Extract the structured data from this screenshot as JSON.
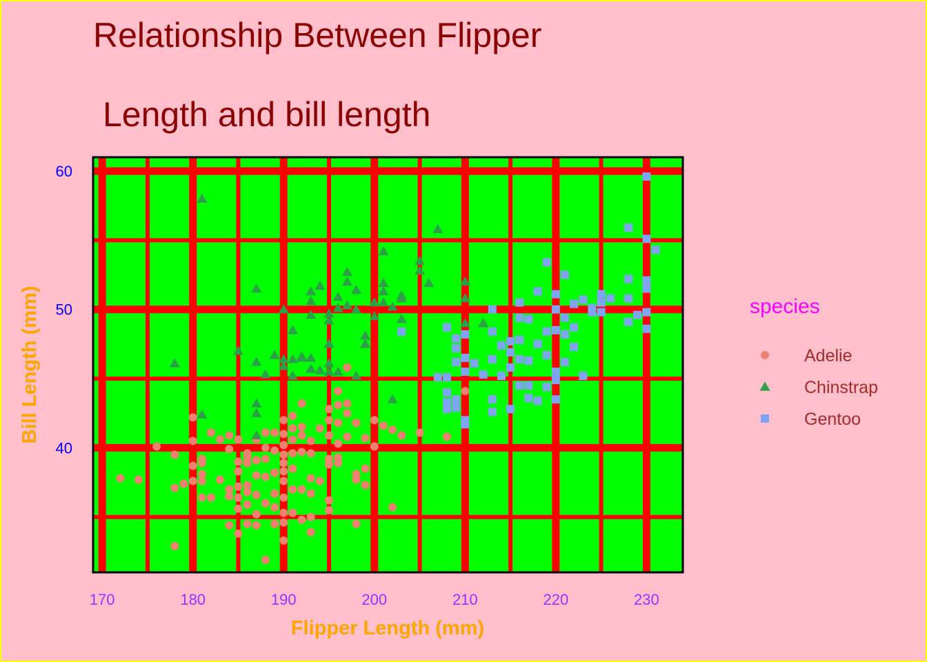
{
  "chart_data": {
    "type": "scatter",
    "title_lines": [
      "Relationship Between Flipper",
      "Length and bill length"
    ],
    "xlabel": "Flipper Length (mm)",
    "ylabel": "Bill Length (mm)",
    "xlim": [
      169,
      234
    ],
    "ylim": [
      31,
      61
    ],
    "x_ticks": [
      170,
      180,
      190,
      200,
      210,
      220,
      230
    ],
    "y_ticks": [
      40,
      50,
      60
    ],
    "grid": true,
    "legend": {
      "title": "species",
      "position": "right"
    },
    "colors": {
      "background": "#ffc0cb",
      "plot_background": "#00ff00",
      "grid": "#ff0000",
      "border": "#ffff00"
    },
    "series": [
      {
        "name": "Adelie",
        "marker": "circle",
        "color": "#f08070",
        "points": [
          [
            172,
            37.8
          ],
          [
            174,
            37.7
          ],
          [
            176,
            40.1
          ],
          [
            178,
            39.5
          ],
          [
            178,
            37.1
          ],
          [
            178,
            32.9
          ],
          [
            179,
            37.4
          ],
          [
            180,
            42.2
          ],
          [
            180,
            40.5
          ],
          [
            180,
            38.7
          ],
          [
            180,
            37.6
          ],
          [
            181,
            39.2
          ],
          [
            181,
            38.9
          ],
          [
            181,
            38.1
          ],
          [
            181,
            37.6
          ],
          [
            181,
            36.4
          ],
          [
            182,
            41.1
          ],
          [
            182,
            36.4
          ],
          [
            183,
            40.6
          ],
          [
            183,
            37.7
          ],
          [
            184,
            40.9
          ],
          [
            184,
            39.9
          ],
          [
            184,
            37.0
          ],
          [
            184,
            36.5
          ],
          [
            184,
            34.4
          ],
          [
            185,
            40.6
          ],
          [
            185,
            39.0
          ],
          [
            185,
            38.3
          ],
          [
            185,
            37.2
          ],
          [
            185,
            36.4
          ],
          [
            185,
            35.6
          ],
          [
            185,
            33.8
          ],
          [
            186,
            39.6
          ],
          [
            186,
            39.3
          ],
          [
            186,
            38.9
          ],
          [
            186,
            37.3
          ],
          [
            186,
            36.8
          ],
          [
            186,
            35.9
          ],
          [
            186,
            34.5
          ],
          [
            187,
            40.6
          ],
          [
            187,
            39.1
          ],
          [
            187,
            38.0
          ],
          [
            187,
            36.6
          ],
          [
            187,
            35.2
          ],
          [
            187,
            34.4
          ],
          [
            188,
            41.1
          ],
          [
            188,
            40.0
          ],
          [
            188,
            39.2
          ],
          [
            188,
            37.9
          ],
          [
            188,
            36.0
          ],
          [
            188,
            31.9
          ],
          [
            189,
            41.1
          ],
          [
            189,
            39.8
          ],
          [
            189,
            38.2
          ],
          [
            189,
            36.7
          ],
          [
            189,
            35.7
          ],
          [
            189,
            34.5
          ],
          [
            190,
            42.0
          ],
          [
            190,
            41.0
          ],
          [
            190,
            40.2
          ],
          [
            190,
            39.5
          ],
          [
            190,
            38.9
          ],
          [
            190,
            38.3
          ],
          [
            190,
            37.6
          ],
          [
            190,
            36.4
          ],
          [
            190,
            35.3
          ],
          [
            190,
            34.6
          ],
          [
            190,
            33.3
          ],
          [
            191,
            42.3
          ],
          [
            191,
            41.4
          ],
          [
            191,
            40.6
          ],
          [
            191,
            39.6
          ],
          [
            191,
            38.5
          ],
          [
            191,
            37.0
          ],
          [
            191,
            35.3
          ],
          [
            192,
            43.2
          ],
          [
            192,
            41.5
          ],
          [
            192,
            40.9
          ],
          [
            192,
            39.7
          ],
          [
            192,
            37.0
          ],
          [
            192,
            34.8
          ],
          [
            193,
            40.5
          ],
          [
            193,
            39.6
          ],
          [
            193,
            37.8
          ],
          [
            193,
            36.7
          ],
          [
            193,
            35.0
          ],
          [
            193,
            33.9
          ],
          [
            194,
            41.4
          ],
          [
            194,
            37.6
          ],
          [
            195,
            42.8
          ],
          [
            195,
            42.0
          ],
          [
            195,
            40.9
          ],
          [
            195,
            39.2
          ],
          [
            195,
            38.8
          ],
          [
            195,
            36.2
          ],
          [
            195,
            35.5
          ],
          [
            196,
            43.1
          ],
          [
            196,
            41.8
          ],
          [
            196,
            40.3
          ],
          [
            196,
            39.3
          ],
          [
            196,
            38.9
          ],
          [
            196,
            44.1
          ],
          [
            197,
            43.2
          ],
          [
            197,
            42.5
          ],
          [
            197,
            40.8
          ],
          [
            197,
            45.8
          ],
          [
            198,
            41.8
          ],
          [
            198,
            38.1
          ],
          [
            198,
            37.7
          ],
          [
            198,
            34.5
          ],
          [
            199,
            40.7
          ],
          [
            199,
            38.5
          ],
          [
            199,
            37.3
          ],
          [
            200,
            42.0
          ],
          [
            200,
            40.1
          ],
          [
            201,
            41.6
          ],
          [
            202,
            41.3
          ],
          [
            202,
            35.7
          ],
          [
            203,
            40.9
          ],
          [
            205,
            41.1
          ],
          [
            208,
            40.8
          ],
          [
            210,
            44.1
          ]
        ]
      },
      {
        "name": "Chinstrap",
        "marker": "triangle",
        "color": "#2ca048",
        "points": [
          [
            178,
            46.1
          ],
          [
            181,
            58.0
          ],
          [
            181,
            42.4
          ],
          [
            185,
            47.0
          ],
          [
            187,
            46.2
          ],
          [
            187,
            43.2
          ],
          [
            187,
            42.5
          ],
          [
            187,
            40.9
          ],
          [
            187,
            51.5
          ],
          [
            188,
            45.3
          ],
          [
            189,
            46.7
          ],
          [
            190,
            50.0
          ],
          [
            190,
            46.4
          ],
          [
            190,
            45.9
          ],
          [
            191,
            48.5
          ],
          [
            191,
            46.4
          ],
          [
            191,
            45.2
          ],
          [
            192,
            46.6
          ],
          [
            192,
            46.5
          ],
          [
            193,
            51.3
          ],
          [
            193,
            50.6
          ],
          [
            193,
            49.6
          ],
          [
            193,
            46.5
          ],
          [
            193,
            45.7
          ],
          [
            194,
            51.7
          ],
          [
            194,
            45.6
          ],
          [
            195,
            49.7
          ],
          [
            195,
            49.2
          ],
          [
            195,
            47.5
          ],
          [
            195,
            46.1
          ],
          [
            195,
            45.5
          ],
          [
            196,
            50.9
          ],
          [
            196,
            50.1
          ],
          [
            196,
            45.5
          ],
          [
            197,
            52.7
          ],
          [
            197,
            52.0
          ],
          [
            197,
            50.3
          ],
          [
            198,
            51.4
          ],
          [
            198,
            50.0
          ],
          [
            198,
            45.2
          ],
          [
            199,
            48.1
          ],
          [
            199,
            47.5
          ],
          [
            200,
            50.5
          ],
          [
            200,
            49.5
          ],
          [
            201,
            54.2
          ],
          [
            201,
            51.9
          ],
          [
            201,
            51.3
          ],
          [
            201,
            50.5
          ],
          [
            202,
            50.2
          ],
          [
            202,
            43.5
          ],
          [
            203,
            51.0
          ],
          [
            203,
            50.8
          ],
          [
            203,
            49.3
          ],
          [
            205,
            53.5
          ],
          [
            205,
            52.8
          ],
          [
            206,
            51.9
          ],
          [
            207,
            55.8
          ],
          [
            210,
            52.0
          ],
          [
            210,
            50.8
          ],
          [
            210,
            49.0
          ],
          [
            212,
            49.0
          ]
        ]
      },
      {
        "name": "Gentoo",
        "marker": "square",
        "color": "#7fa4f0",
        "points": [
          [
            203,
            48.4
          ],
          [
            207,
            45.1
          ],
          [
            208,
            48.7
          ],
          [
            208,
            45.1
          ],
          [
            208,
            44.0
          ],
          [
            208,
            43.3
          ],
          [
            208,
            42.8
          ],
          [
            209,
            47.9
          ],
          [
            209,
            47.2
          ],
          [
            209,
            46.2
          ],
          [
            209,
            43.5
          ],
          [
            209,
            42.9
          ],
          [
            210,
            48.2
          ],
          [
            210,
            46.5
          ],
          [
            210,
            45.5
          ],
          [
            210,
            42.0
          ],
          [
            210,
            41.7
          ],
          [
            211,
            46.1
          ],
          [
            212,
            45.3
          ],
          [
            213,
            50.0
          ],
          [
            213,
            48.4
          ],
          [
            213,
            46.4
          ],
          [
            213,
            43.5
          ],
          [
            213,
            42.6
          ],
          [
            214,
            47.4
          ],
          [
            214,
            45.2
          ],
          [
            215,
            47.7
          ],
          [
            215,
            46.9
          ],
          [
            215,
            45.8
          ],
          [
            215,
            42.8
          ],
          [
            216,
            50.5
          ],
          [
            216,
            49.4
          ],
          [
            216,
            47.8
          ],
          [
            216,
            46.4
          ],
          [
            216,
            44.5
          ],
          [
            217,
            49.3
          ],
          [
            217,
            46.3
          ],
          [
            217,
            44.5
          ],
          [
            217,
            43.6
          ],
          [
            218,
            51.3
          ],
          [
            218,
            47.5
          ],
          [
            218,
            43.4
          ],
          [
            219,
            53.4
          ],
          [
            219,
            48.4
          ],
          [
            219,
            46.7
          ],
          [
            219,
            44.4
          ],
          [
            220,
            51.1
          ],
          [
            220,
            50.0
          ],
          [
            220,
            48.5
          ],
          [
            220,
            45.5
          ],
          [
            220,
            44.9
          ],
          [
            220,
            43.5
          ],
          [
            221,
            52.5
          ],
          [
            221,
            49.4
          ],
          [
            221,
            48.2
          ],
          [
            221,
            46.2
          ],
          [
            222,
            50.4
          ],
          [
            222,
            48.7
          ],
          [
            222,
            47.3
          ],
          [
            223,
            50.7
          ],
          [
            223,
            45.2
          ],
          [
            224,
            50.1
          ],
          [
            224,
            49.8
          ],
          [
            225,
            51.1
          ],
          [
            225,
            50.5
          ],
          [
            225,
            49.8
          ],
          [
            226,
            50.8
          ],
          [
            228,
            55.9
          ],
          [
            228,
            52.2
          ],
          [
            228,
            50.8
          ],
          [
            228,
            49.1
          ],
          [
            229,
            49.6
          ],
          [
            230,
            59.6
          ],
          [
            230,
            55.1
          ],
          [
            230,
            52.1
          ],
          [
            230,
            51.5
          ],
          [
            230,
            49.8
          ],
          [
            230,
            48.6
          ],
          [
            231,
            54.3
          ]
        ]
      }
    ]
  }
}
